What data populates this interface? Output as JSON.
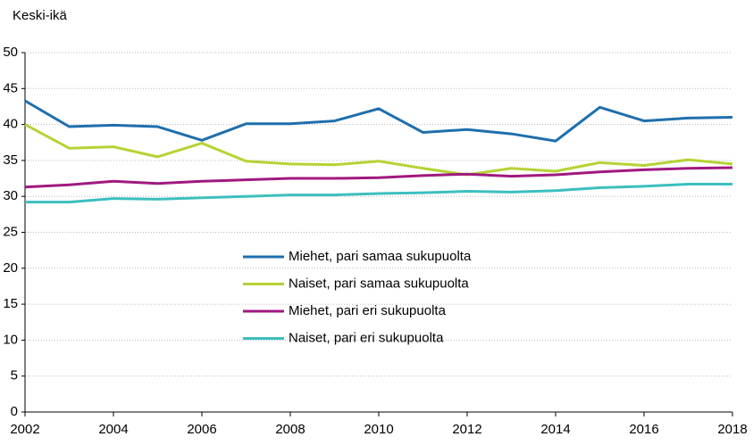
{
  "chart_data": {
    "type": "line",
    "y_label": "Keski-ikä",
    "x": [
      2002,
      2003,
      2004,
      2005,
      2006,
      2007,
      2008,
      2009,
      2010,
      2011,
      2012,
      2013,
      2014,
      2015,
      2016,
      2017,
      2018
    ],
    "series": [
      {
        "name": "Miehet, pari samaa sukupuolta",
        "color": "#1f6fad",
        "values": [
          43.3,
          39.7,
          39.9,
          39.7,
          37.8,
          40.1,
          40.1,
          40.5,
          42.2,
          38.9,
          39.3,
          38.7,
          37.7,
          42.4,
          40.5,
          40.9,
          41.0
        ]
      },
      {
        "name": "Naiset, pari samaa sukupuolta",
        "color": "#b5d334",
        "values": [
          40.0,
          36.7,
          36.9,
          35.5,
          37.4,
          34.9,
          34.5,
          34.4,
          34.9,
          33.9,
          33.0,
          33.9,
          33.5,
          34.7,
          34.3,
          35.1,
          34.5
        ]
      },
      {
        "name": "Miehet, pari eri sukupuolta",
        "color": "#a0197f",
        "values": [
          31.3,
          31.6,
          32.1,
          31.8,
          32.1,
          32.3,
          32.5,
          32.5,
          32.6,
          32.9,
          33.1,
          32.8,
          33.0,
          33.4,
          33.7,
          33.9,
          34.0
        ]
      },
      {
        "name": "Naiset, pari eri sukupuolta",
        "color": "#3cbfbf",
        "values": [
          29.2,
          29.2,
          29.7,
          29.6,
          29.8,
          30.0,
          30.2,
          30.2,
          30.4,
          30.5,
          30.7,
          30.6,
          30.8,
          31.2,
          31.4,
          31.7,
          31.7
        ]
      }
    ],
    "xlim": [
      2002,
      2018
    ],
    "xticks": [
      2002,
      2004,
      2006,
      2008,
      2010,
      2012,
      2014,
      2016,
      2018
    ],
    "ylim": [
      0,
      50
    ],
    "yticks": [
      0,
      5,
      10,
      15,
      20,
      25,
      30,
      35,
      40,
      45,
      50
    ],
    "grid": true
  }
}
